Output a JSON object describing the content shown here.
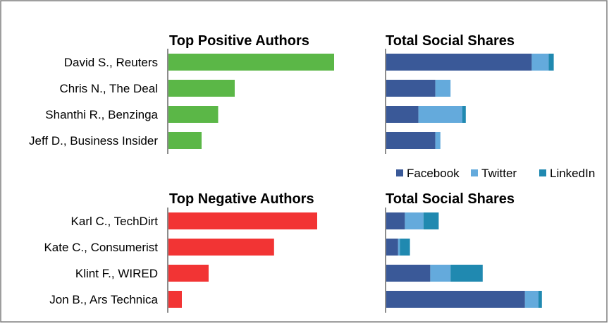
{
  "chart_data": [
    {
      "type": "bar",
      "orientation": "horizontal",
      "title": "Top Positive Authors",
      "categories": [
        "David S., Reuters",
        "Chris N., The Deal",
        "Shanthi R., Benzinga",
        "Jeff D., Business Insider"
      ],
      "values": [
        100,
        40,
        30,
        20
      ],
      "color": "#5bb747",
      "xlim": [
        0,
        100
      ]
    },
    {
      "type": "bar",
      "orientation": "horizontal",
      "stacked": true,
      "title": "Total Social Shares",
      "categories": [
        "David S., Reuters",
        "Chris N., The Deal",
        "Shanthi R., Benzinga",
        "Jeff D., Business Insider"
      ],
      "series": [
        {
          "name": "Facebook",
          "values": [
            86,
            29,
            19,
            29
          ],
          "color": "#3a5998"
        },
        {
          "name": "Twitter",
          "values": [
            10,
            9,
            26,
            3
          ],
          "color": "#64aadc"
        },
        {
          "name": "LinkedIn",
          "values": [
            3,
            0,
            2,
            0
          ],
          "color": "#2089b0"
        }
      ],
      "xlim": [
        0,
        100
      ]
    },
    {
      "type": "bar",
      "orientation": "horizontal",
      "title": "Top Negative Authors",
      "categories": [
        "Karl C., TechDirt",
        "Kate C., Consumerist",
        "Klint F., WIRED",
        "Jon B., Ars Technica"
      ],
      "values": [
        100,
        71,
        27,
        9
      ],
      "color": "#f23434",
      "xlim": [
        0,
        100
      ]
    },
    {
      "type": "bar",
      "orientation": "horizontal",
      "stacked": true,
      "title": "Total Social Shares",
      "categories": [
        "Karl C., TechDirt",
        "Kate C., Consumerist",
        "Klint F., WIRED",
        "Jon B., Ars Technica"
      ],
      "series": [
        {
          "name": "Facebook",
          "values": [
            11,
            7,
            26,
            82
          ],
          "color": "#3a5998"
        },
        {
          "name": "Twitter",
          "values": [
            11,
            1,
            12,
            8
          ],
          "color": "#64aadc"
        },
        {
          "name": "LinkedIn",
          "values": [
            9,
            6,
            19,
            2
          ],
          "color": "#2089b0"
        }
      ],
      "xlim": [
        0,
        100
      ]
    }
  ],
  "legend": {
    "placement": "middle-right",
    "items": [
      {
        "name": "Facebook",
        "color": "#3a5998"
      },
      {
        "name": "Twitter",
        "color": "#64aadc"
      },
      {
        "name": "LinkedIn",
        "color": "#2089b0"
      }
    ]
  }
}
